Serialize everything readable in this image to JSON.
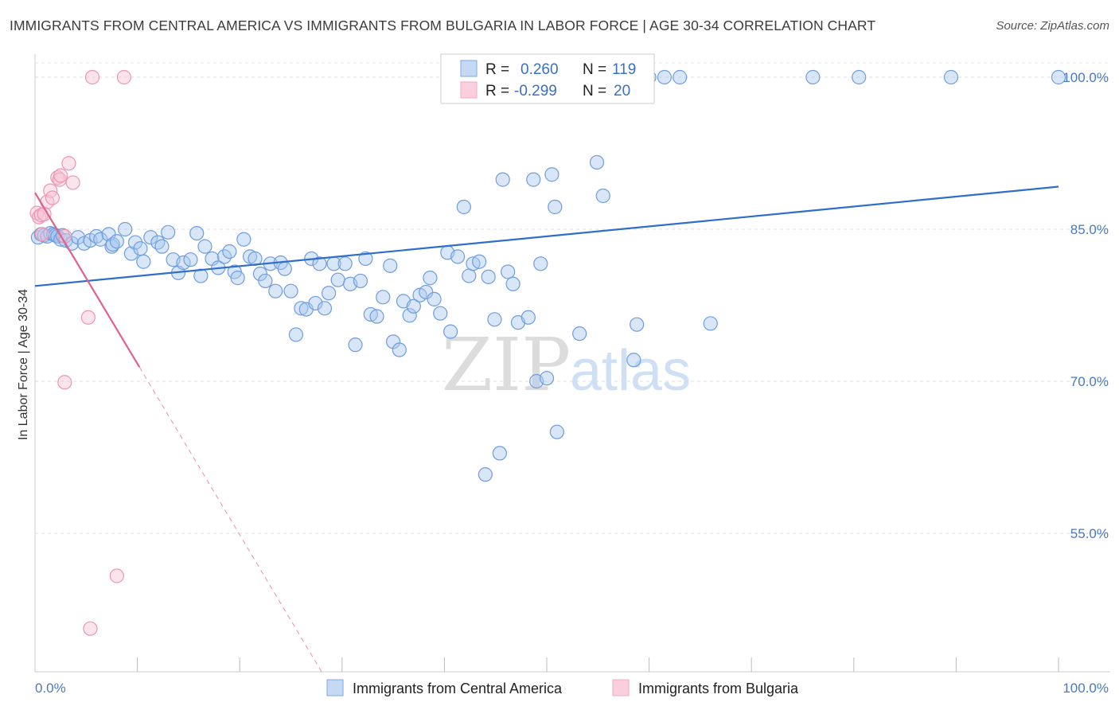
{
  "header": {
    "title": "IMMIGRANTS FROM CENTRAL AMERICA VS IMMIGRANTS FROM BULGARIA IN LABOR FORCE | AGE 30-34 CORRELATION CHART",
    "source": "Source: ZipAtlas.com"
  },
  "watermark": {
    "zip": "ZIP",
    "atlas": "atlas"
  },
  "chart_data": {
    "type": "scatter",
    "ylabel": "In Labor Force | Age 30-34",
    "xlim": [
      0,
      100
    ],
    "ylim": [
      40,
      103
    ],
    "x_tick_labels": [
      "0.0%",
      "100.0%"
    ],
    "y_ticks": [
      {
        "value": 55,
        "label": "55.0%"
      },
      {
        "value": 70,
        "label": "70.0%"
      },
      {
        "value": 85,
        "label": "85.0%"
      },
      {
        "value": 100,
        "label": "100.0%"
      }
    ],
    "grid": true,
    "legend": {
      "position": "top-center",
      "rows": [
        {
          "r_label": "R =",
          "r_value": "0.260",
          "n_label": "N =",
          "n_value": "119"
        },
        {
          "r_label": "R =",
          "r_value": "-0.299",
          "n_label": "N =",
          "n_value": "20"
        }
      ]
    },
    "series": [
      {
        "name": "Immigrants from Central America",
        "color": "#7aa7e6",
        "line_color": "#2f6fca",
        "trend": {
          "x0": 0,
          "y0": 79.4,
          "x1": 100,
          "y1": 89.2
        },
        "points": [
          [
            0.3,
            84.2
          ],
          [
            0.6,
            84.5
          ],
          [
            0.9,
            84.4
          ],
          [
            1.2,
            84.3
          ],
          [
            1.5,
            84.6
          ],
          [
            1.8,
            84.5
          ],
          [
            2.0,
            84.4
          ],
          [
            2.2,
            84.3
          ],
          [
            2.5,
            84.0
          ],
          [
            2.7,
            84.4
          ],
          [
            3.0,
            83.9
          ],
          [
            3.6,
            83.6
          ],
          [
            4.2,
            84.2
          ],
          [
            4.8,
            83.6
          ],
          [
            5.4,
            83.9
          ],
          [
            6.0,
            84.3
          ],
          [
            6.4,
            84.0
          ],
          [
            7.2,
            84.5
          ],
          [
            7.5,
            83.3
          ],
          [
            7.6,
            83.5
          ],
          [
            8.0,
            83.8
          ],
          [
            8.8,
            85.0
          ],
          [
            9.4,
            82.6
          ],
          [
            9.8,
            83.7
          ],
          [
            10.3,
            83.1
          ],
          [
            10.6,
            81.8
          ],
          [
            11.3,
            84.2
          ],
          [
            12.0,
            83.7
          ],
          [
            12.4,
            83.3
          ],
          [
            13.0,
            84.7
          ],
          [
            13.5,
            82.0
          ],
          [
            14.0,
            80.7
          ],
          [
            14.5,
            81.7
          ],
          [
            15.2,
            82.0
          ],
          [
            15.8,
            84.6
          ],
          [
            16.2,
            80.4
          ],
          [
            16.6,
            83.3
          ],
          [
            17.3,
            82.1
          ],
          [
            17.9,
            81.2
          ],
          [
            18.5,
            82.3
          ],
          [
            19.0,
            82.8
          ],
          [
            19.5,
            80.8
          ],
          [
            19.8,
            80.2
          ],
          [
            20.4,
            84.0
          ],
          [
            21.0,
            82.3
          ],
          [
            21.5,
            82.1
          ],
          [
            22.0,
            80.6
          ],
          [
            22.5,
            79.9
          ],
          [
            23.0,
            81.6
          ],
          [
            23.5,
            78.9
          ],
          [
            24.0,
            81.7
          ],
          [
            24.4,
            81.1
          ],
          [
            25.0,
            78.9
          ],
          [
            25.5,
            74.6
          ],
          [
            26.0,
            77.2
          ],
          [
            26.5,
            77.1
          ],
          [
            27.0,
            82.1
          ],
          [
            27.4,
            77.7
          ],
          [
            27.8,
            81.6
          ],
          [
            28.3,
            77.2
          ],
          [
            28.7,
            78.7
          ],
          [
            29.2,
            81.6
          ],
          [
            29.6,
            80.0
          ],
          [
            30.3,
            81.6
          ],
          [
            30.8,
            79.6
          ],
          [
            31.3,
            73.6
          ],
          [
            31.8,
            79.9
          ],
          [
            32.3,
            82.1
          ],
          [
            32.8,
            76.6
          ],
          [
            33.4,
            76.4
          ],
          [
            34.0,
            78.3
          ],
          [
            34.7,
            81.4
          ],
          [
            35.0,
            73.9
          ],
          [
            35.6,
            73.1
          ],
          [
            36.0,
            77.9
          ],
          [
            36.6,
            76.5
          ],
          [
            37.0,
            77.4
          ],
          [
            37.6,
            78.5
          ],
          [
            38.2,
            78.8
          ],
          [
            38.6,
            80.2
          ],
          [
            39.0,
            78.1
          ],
          [
            39.6,
            76.7
          ],
          [
            40.3,
            82.7
          ],
          [
            40.6,
            74.9
          ],
          [
            41.3,
            82.3
          ],
          [
            41.9,
            87.2
          ],
          [
            42.4,
            80.4
          ],
          [
            42.8,
            81.6
          ],
          [
            43.4,
            81.8
          ],
          [
            44.0,
            60.8
          ],
          [
            44.3,
            80.3
          ],
          [
            44.9,
            76.1
          ],
          [
            45.4,
            62.9
          ],
          [
            45.7,
            89.9
          ],
          [
            46.2,
            80.8
          ],
          [
            46.7,
            79.6
          ],
          [
            47.2,
            75.8
          ],
          [
            48.2,
            76.3
          ],
          [
            48.7,
            89.9
          ],
          [
            49.0,
            70.0
          ],
          [
            49.4,
            81.6
          ],
          [
            50.0,
            70.3
          ],
          [
            50.5,
            90.4
          ],
          [
            50.8,
            87.2
          ],
          [
            51.0,
            65.0
          ],
          [
            53.2,
            74.7
          ],
          [
            54.9,
            91.6
          ],
          [
            55.5,
            88.3
          ],
          [
            58.5,
            72.1
          ],
          [
            58.8,
            75.6
          ],
          [
            66.0,
            75.7
          ],
          [
            48.0,
            100
          ],
          [
            53.0,
            100
          ],
          [
            57.0,
            100
          ],
          [
            60.0,
            100
          ],
          [
            61.5,
            100
          ],
          [
            63.0,
            100
          ],
          [
            76.0,
            100
          ],
          [
            80.5,
            100
          ],
          [
            89.5,
            100
          ],
          [
            100,
            100
          ]
        ]
      },
      {
        "name": "Immigrants from Bulgaria",
        "color": "#f4a6c0",
        "line_color": "#e0608e",
        "trend": {
          "x0": 0,
          "y0": 88.6,
          "x1": 10.2,
          "y1": 71.4
        },
        "trend_dashed_to": {
          "x": 28.2,
          "y": 41.0
        },
        "points": [
          [
            0.2,
            86.6
          ],
          [
            0.4,
            86.2
          ],
          [
            0.6,
            86.4
          ],
          [
            0.9,
            86.5
          ],
          [
            1.2,
            87.7
          ],
          [
            1.5,
            88.8
          ],
          [
            1.7,
            88.1
          ],
          [
            2.2,
            90.1
          ],
          [
            2.4,
            89.9
          ],
          [
            2.5,
            90.3
          ],
          [
            3.3,
            91.5
          ],
          [
            3.7,
            89.6
          ],
          [
            2.9,
            84.3
          ],
          [
            5.2,
            76.3
          ],
          [
            2.9,
            69.9
          ],
          [
            5.6,
            100
          ],
          [
            8.7,
            100
          ],
          [
            8.0,
            50.8
          ],
          [
            5.4,
            45.6
          ],
          [
            0.7,
            84.5
          ]
        ]
      }
    ]
  }
}
